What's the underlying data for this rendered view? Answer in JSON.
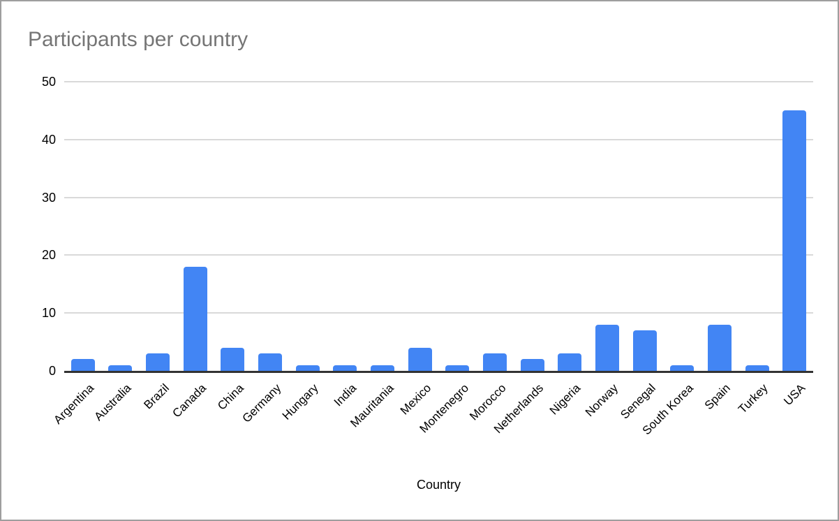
{
  "chart_data": {
    "type": "bar",
    "title": "Participants per country",
    "xlabel": "Country",
    "ylabel": "",
    "categories": [
      "Argentina",
      "Australia",
      "Brazil",
      "Canada",
      "China",
      "Germany",
      "Hungary",
      "India",
      "Mauritania",
      "Mexico",
      "Montenegro",
      "Morocco",
      "Netherlands",
      "Nigeria",
      "Norway",
      "Senegal",
      "South Korea",
      "Spain",
      "Turkey",
      "USA"
    ],
    "values": [
      2,
      1,
      3,
      18,
      4,
      3,
      1,
      1,
      1,
      4,
      1,
      3,
      2,
      3,
      8,
      7,
      1,
      8,
      1,
      45
    ],
    "ylim": [
      0,
      50
    ],
    "yticks": [
      0,
      10,
      20,
      30,
      40,
      50
    ],
    "grid": true,
    "legend_position": "none",
    "colors": {
      "bar": "#4285f4",
      "gridline": "#d9d9d9",
      "axis_line": "#333333",
      "title_text": "#757575",
      "tick_text": "#000000",
      "frame_border": "#9e9e9e",
      "background": "#ffffff"
    }
  }
}
